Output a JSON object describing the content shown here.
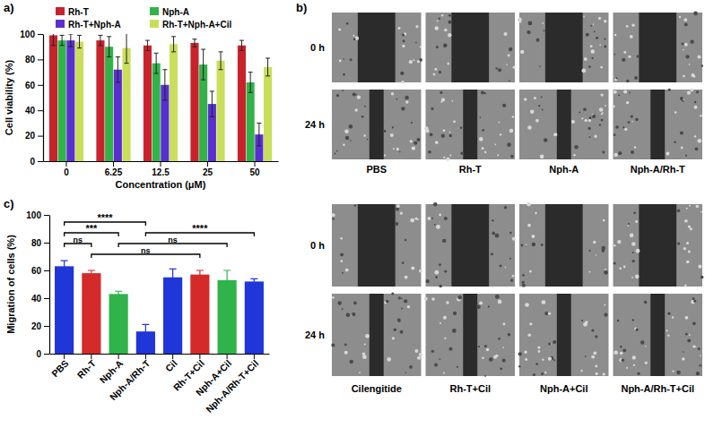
{
  "chart_data": [
    {
      "type": "bar",
      "title": "a)",
      "x_label": "Concentration (μM)",
      "y_label": "Cell viability (%)",
      "categories": [
        "0",
        "6.25",
        "12.5",
        "25",
        "50"
      ],
      "series": [
        {
          "name": "Rh-T",
          "color": "#c8232c",
          "values": [
            99,
            95,
            91,
            93,
            91
          ],
          "errors": [
            8,
            4,
            4,
            3,
            4
          ]
        },
        {
          "name": "Nph-A",
          "color": "#33b24a",
          "values": [
            95,
            90,
            77,
            76,
            62
          ],
          "errors": [
            4,
            8,
            8,
            12,
            8
          ]
        },
        {
          "name": "Rh-T+Nph-A",
          "color": "#5a2fd0",
          "values": [
            95,
            72,
            60,
            45,
            21
          ],
          "errors": [
            5,
            10,
            12,
            10,
            9
          ]
        },
        {
          "name": "Rh-T+Nph-A+Cil",
          "color": "#c9df5b",
          "values": [
            94,
            89,
            92,
            79,
            74
          ],
          "errors": [
            5,
            12,
            6,
            7,
            7
          ]
        }
      ],
      "ylim": [
        0,
        100
      ],
      "yticks": [
        0,
        20,
        40,
        60,
        80,
        100
      ],
      "legend": "top"
    },
    {
      "type": "bar",
      "title": "c)",
      "y_label": "Migration of cells (%)",
      "categories": [
        "PBS",
        "Rh-T",
        "Nph-A",
        "Nph-A/Rh-T",
        "Cil",
        "Rh-T+Cil",
        "Nph-A+Cil",
        "Nph-A/Rh-T+Cil"
      ],
      "values": [
        63,
        58,
        43,
        16,
        55,
        57,
        53,
        52
      ],
      "errors": [
        4,
        2,
        2,
        5,
        6,
        3,
        7,
        2
      ],
      "colors": [
        "#2036d8",
        "#d42a2a",
        "#2fb34a",
        "#2036d8",
        "#2036d8",
        "#d42a2a",
        "#2fb34a",
        "#2036d8"
      ],
      "ylim": [
        0,
        100
      ],
      "yticks": [
        0,
        20,
        40,
        60,
        80,
        100
      ],
      "annotations": [
        {
          "text": "ns",
          "between": [
            "PBS",
            "Rh-T"
          ]
        },
        {
          "text": "***",
          "between": [
            "PBS",
            "Nph-A"
          ]
        },
        {
          "text": "****",
          "between": [
            "PBS",
            "Nph-A/Rh-T"
          ]
        },
        {
          "text": "ns",
          "between": [
            "Rh-T",
            "Rh-T+Cil"
          ]
        },
        {
          "text": "ns",
          "between": [
            "Nph-A",
            "Nph-A+Cil"
          ]
        },
        {
          "text": "****",
          "between": [
            "Nph-A/Rh-T",
            "Nph-A/Rh-T+Cil"
          ]
        }
      ]
    },
    {
      "type": "image_grid",
      "title": "b)",
      "rows": [
        "0 h",
        "24 h"
      ],
      "panels": [
        [
          "PBS",
          "Rh-T",
          "Nph-A",
          "Nph-A/Rh-T"
        ],
        [
          "Cilengitide",
          "Rh-T+Cil",
          "Nph-A+Cil",
          "Nph-A/Rh-T+Cil"
        ]
      ]
    }
  ]
}
